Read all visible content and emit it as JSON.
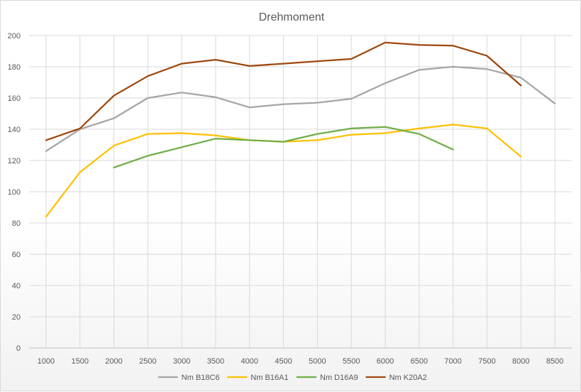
{
  "chart_data": {
    "type": "line",
    "title": "Drehmoment",
    "xlabel": "",
    "ylabel": "",
    "categories": [
      "1000",
      "1500",
      "2000",
      "2500",
      "3000",
      "3500",
      "4000",
      "4500",
      "5000",
      "5500",
      "6000",
      "6500",
      "7000",
      "7500",
      "8000",
      "8500"
    ],
    "ylim": [
      0,
      200
    ],
    "yticks": [
      0,
      20,
      40,
      60,
      80,
      100,
      120,
      140,
      160,
      180,
      200
    ],
    "grid": "both",
    "legend_position": "bottom",
    "series": [
      {
        "name": "Nm B18C6",
        "color": "#a5a5a5",
        "values": [
          126,
          140,
          147,
          160,
          163.5,
          160.5,
          154,
          156,
          157,
          159.5,
          169.5,
          178,
          180,
          178.5,
          173,
          156.5
        ]
      },
      {
        "name": "Nm B16A1",
        "color": "#ffc000",
        "values": [
          84,
          112.5,
          129.5,
          137,
          137.5,
          136,
          133,
          132,
          133,
          136.5,
          137.5,
          140.5,
          143,
          140.5,
          122.5,
          null
        ]
      },
      {
        "name": "Nm D16A9",
        "color": "#70ad47",
        "values": [
          null,
          null,
          115.5,
          123,
          128.5,
          134,
          133,
          132,
          137,
          140.5,
          141.5,
          137,
          127,
          null,
          null,
          null
        ]
      },
      {
        "name": "Nm K20A2",
        "color": "#9e480e",
        "values": [
          133,
          140.5,
          161.5,
          174,
          182,
          184.5,
          180.5,
          182,
          183.5,
          185,
          195.5,
          194,
          193.5,
          187,
          168,
          null
        ]
      }
    ]
  }
}
